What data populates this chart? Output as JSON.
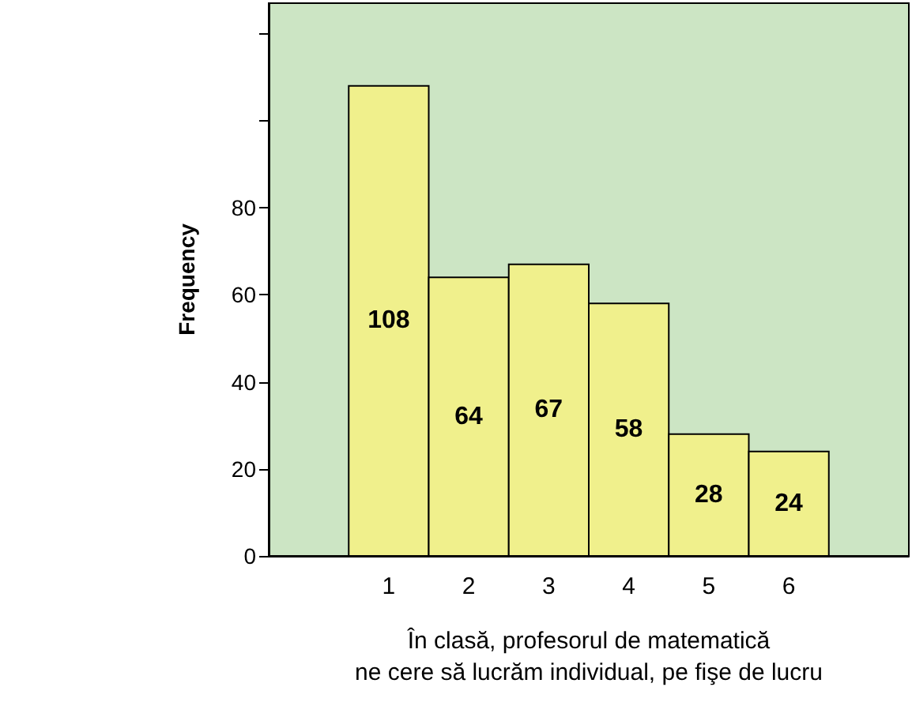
{
  "chart_data": {
    "type": "histogram",
    "xlabel": "În clasă, profesorul de matematică\nne cere să lucrăm individual, pe fişe de lucru",
    "ylabel": "Frequency",
    "bins": [
      0.5,
      1.5,
      2.5,
      3.5,
      4.5,
      5.5,
      6.5
    ],
    "values": [
      108,
      64,
      67,
      58,
      28,
      24
    ],
    "color": "#f0f08c",
    "xlim": [
      -0.5,
      7.5
    ],
    "xticks": [
      1,
      2,
      3,
      4,
      5,
      6
    ],
    "ylim": [
      0,
      127
    ],
    "yticks": [
      0,
      20,
      40,
      60,
      80,
      {
        "value": 100,
        "label": null
      },
      {
        "value": 120,
        "label": null
      }
    ],
    "data_labels": true,
    "grid": false
  }
}
